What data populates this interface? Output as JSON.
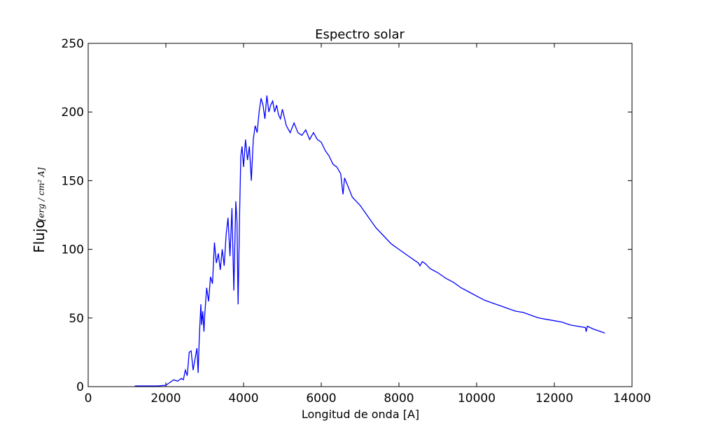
{
  "chart_data": {
    "type": "line",
    "title": "Espectro solar",
    "xlabel": "Longitud de onda [A]",
    "ylabel": "Flujo",
    "ylabel_unit": "[erg / cm² A]",
    "xlim": [
      0,
      14000
    ],
    "ylim": [
      0,
      250
    ],
    "x_ticks": [
      0,
      2000,
      4000,
      6000,
      8000,
      10000,
      12000,
      14000
    ],
    "y_ticks": [
      0,
      50,
      100,
      150,
      200,
      250
    ],
    "grid": false,
    "line_color": "#0000ff",
    "series": [
      {
        "x": [
          1200,
          1500,
          1800,
          2000,
          2100,
          2200,
          2300,
          2400,
          2450,
          2500,
          2550,
          2600,
          2650,
          2700,
          2750,
          2800,
          2830,
          2860,
          2900,
          2920,
          2950,
          2980,
          3000,
          3050,
          3100,
          3150,
          3200,
          3250,
          3300,
          3350,
          3400,
          3450,
          3500,
          3550,
          3600,
          3650,
          3700,
          3750,
          3800,
          3830,
          3860,
          3900,
          3930,
          3960,
          4000,
          4050,
          4100,
          4150,
          4200,
          4250,
          4300,
          4350,
          4400,
          4450,
          4500,
          4550,
          4600,
          4650,
          4700,
          4750,
          4800,
          4850,
          4900,
          4950,
          5000,
          5100,
          5200,
          5300,
          5400,
          5500,
          5600,
          5700,
          5800,
          5900,
          6000,
          6100,
          6200,
          6300,
          6400,
          6500,
          6560,
          6600,
          6700,
          6800,
          7000,
          7200,
          7400,
          7600,
          7800,
          8000,
          8200,
          8400,
          8500,
          8540,
          8600,
          8660,
          8700,
          8800,
          9000,
          9200,
          9400,
          9600,
          9800,
          10000,
          10200,
          10400,
          10600,
          10800,
          11000,
          11200,
          11400,
          11600,
          11800,
          12000,
          12200,
          12400,
          12600,
          12800,
          12820,
          12850,
          13000,
          13200,
          13300
        ],
        "y": [
          0.5,
          0.5,
          0.5,
          1,
          3,
          5,
          4,
          6,
          5,
          12,
          8,
          25,
          26,
          12,
          20,
          28,
          10,
          35,
          60,
          45,
          55,
          40,
          52,
          72,
          62,
          80,
          75,
          105,
          90,
          97,
          85,
          100,
          88,
          110,
          123,
          95,
          130,
          70,
          135,
          120,
          60,
          130,
          168,
          175,
          160,
          180,
          165,
          175,
          150,
          180,
          190,
          185,
          200,
          210,
          205,
          195,
          212,
          200,
          205,
          208,
          200,
          205,
          198,
          195,
          202,
          190,
          185,
          192,
          185,
          183,
          187,
          180,
          185,
          180,
          178,
          172,
          168,
          162,
          160,
          155,
          140,
          152,
          145,
          138,
          132,
          124,
          116,
          110,
          104,
          100,
          96,
          92,
          90,
          88,
          91,
          90,
          89,
          86,
          83,
          79,
          76,
          72,
          69,
          66,
          63,
          61,
          59,
          57,
          55,
          54,
          52,
          50,
          49,
          48,
          47,
          45,
          44,
          43,
          40,
          44,
          42,
          40,
          39
        ]
      }
    ]
  }
}
